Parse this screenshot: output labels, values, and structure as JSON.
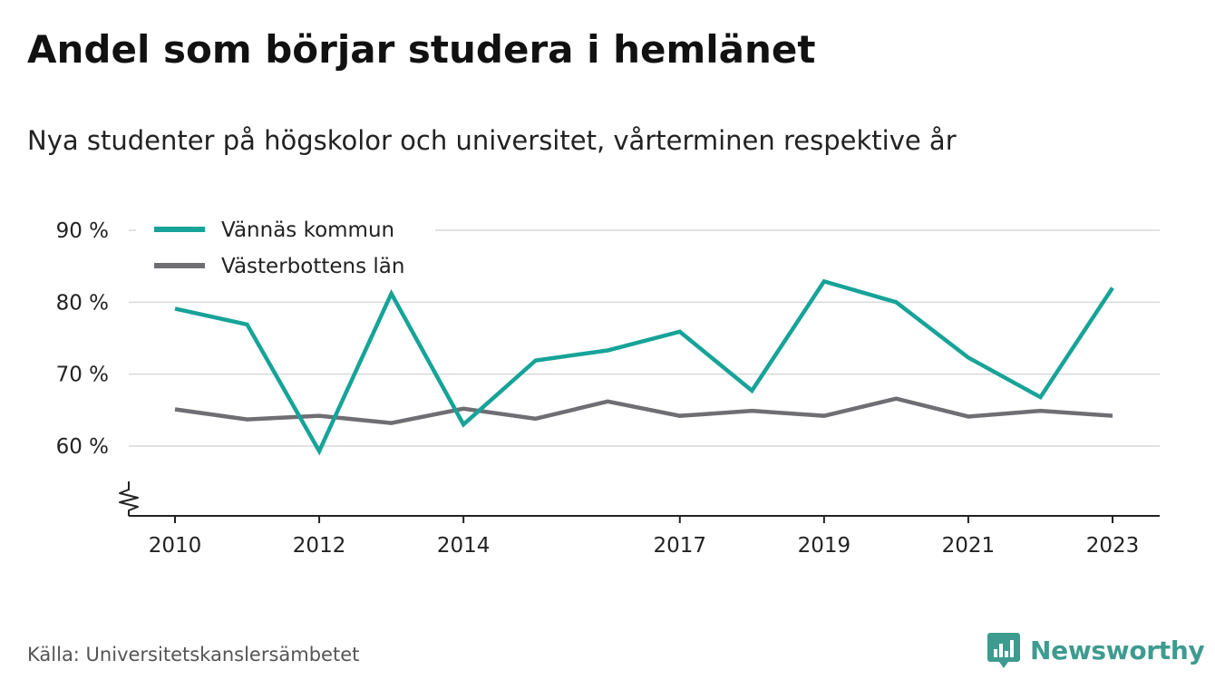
{
  "title": "Andel som börjar studera i hemlänet",
  "subtitle": "Nya studenter på högskolor och universitet, vårterminen respektive år",
  "source": "Källa: Universitetskanslersämbetet",
  "brand": {
    "name": "Newsworthy",
    "icon": "bar-chart-badge-icon",
    "color": "#3e9b8f"
  },
  "chart_data": {
    "type": "line",
    "x": [
      2010,
      2011,
      2012,
      2013,
      2014,
      2015,
      2016,
      2017,
      2018,
      2019,
      2020,
      2021,
      2022,
      2023
    ],
    "x_tick_labels": [
      "2010",
      "2012",
      "2014",
      "2017",
      "2019",
      "2021",
      "2023"
    ],
    "y_tick_labels": [
      "90 %",
      "80 %",
      "70 %",
      "60 %"
    ],
    "y_ticks": [
      90,
      80,
      70,
      60
    ],
    "ylim": [
      50,
      90
    ],
    "y_axis_break": true,
    "grid": true,
    "legend_position": "top-left",
    "series": [
      {
        "name": "Vännäs kommun",
        "color": "#17a398",
        "values": [
          79.1,
          76.9,
          59.3,
          81.2,
          63.0,
          71.9,
          73.3,
          75.9,
          67.7,
          82.9,
          80.0,
          72.3,
          66.8,
          82.0
        ]
      },
      {
        "name": "Västerbottens län",
        "color": "#6e6e73",
        "values": [
          65.1,
          63.7,
          64.2,
          63.2,
          65.2,
          63.8,
          66.2,
          64.2,
          64.9,
          64.2,
          66.6,
          64.1,
          64.9,
          64.2
        ]
      }
    ]
  }
}
